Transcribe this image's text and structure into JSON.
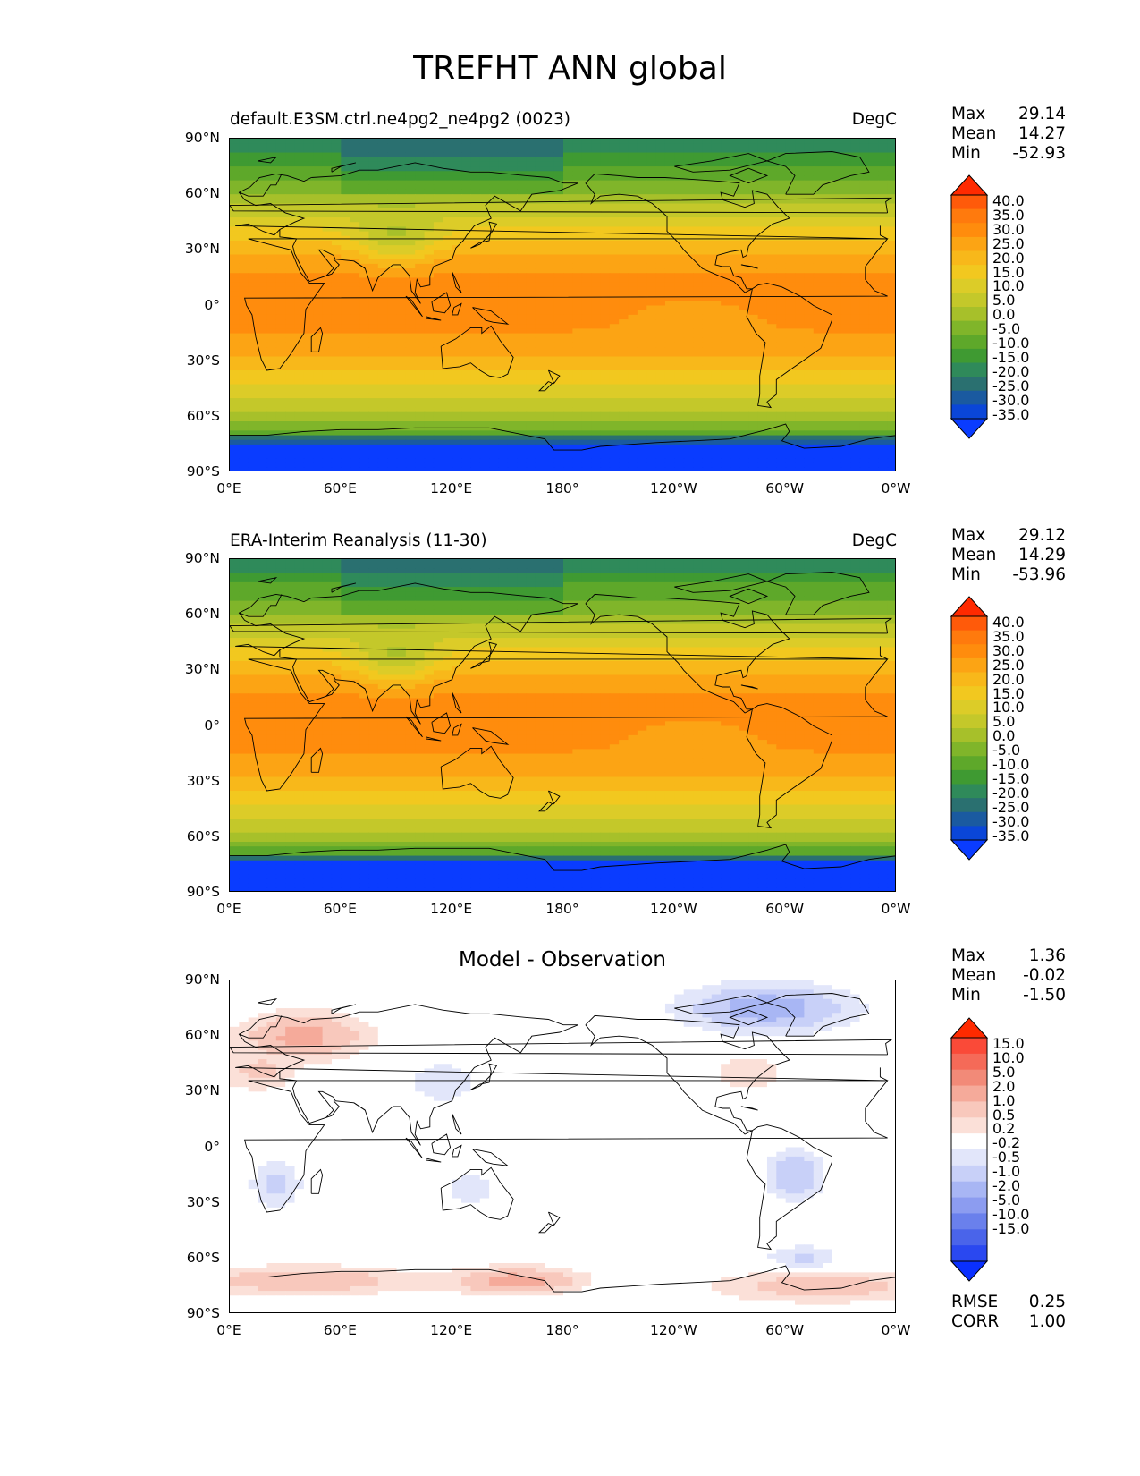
{
  "figure": {
    "title": "TREFHT ANN global"
  },
  "axes": {
    "yticks": [
      "90°N",
      "60°N",
      "30°N",
      "0°",
      "30°S",
      "60°S",
      "90°S"
    ],
    "xticks": [
      "0°E",
      "60°E",
      "120°E",
      "180°",
      "120°W",
      "60°W",
      "0°W"
    ]
  },
  "panels": [
    {
      "title_left": "default.E3SM.ctrl.ne4pg2_ne4pg2 (0023)",
      "title_right": "DegC",
      "stats": {
        "max_label": "Max",
        "max": "29.14",
        "mean_label": "Mean",
        "mean": "14.27",
        "min_label": "Min",
        "min": "-52.93"
      }
    },
    {
      "title_left": "ERA-Interim Reanalysis (11-30)",
      "title_right": "DegC",
      "stats": {
        "max_label": "Max",
        "max": "29.12",
        "mean_label": "Mean",
        "mean": "14.29",
        "min_label": "Min",
        "min": "-53.96"
      }
    },
    {
      "title_center": "Model - Observation",
      "stats": {
        "max_label": "Max",
        "max": "1.36",
        "mean_label": "Mean",
        "mean": "-0.02",
        "min_label": "Min",
        "min": "-1.50"
      },
      "metrics": {
        "rmse_label": "RMSE",
        "rmse": "0.25",
        "corr_label": "CORR",
        "corr": "1.00"
      }
    }
  ],
  "colorbars": {
    "temperature": {
      "labels": [
        "40.0",
        "35.0",
        "30.0",
        "25.0",
        "20.0",
        "15.0",
        "10.0",
        "5.0",
        "0.0",
        "-5.0",
        "-10.0",
        "-15.0",
        "-20.0",
        "-25.0",
        "-30.0",
        "-35.0"
      ],
      "colors": [
        "#ff2a00",
        "#ff5a0a",
        "#ff7a0d",
        "#ff8c0d",
        "#fca414",
        "#f8b81a",
        "#f2c81f",
        "#dccc28",
        "#c4c82a",
        "#a7c02a",
        "#80b52a",
        "#5ea82a",
        "#3f9a32",
        "#2f8a5a",
        "#2a7070",
        "#1a5aa0",
        "#0a46d8",
        "#0a3cff"
      ]
    },
    "difference": {
      "labels": [
        "15.0",
        "10.0",
        "5.0",
        "2.0",
        "1.0",
        "0.5",
        "0.2",
        "-0.2",
        "-0.5",
        "-1.0",
        "-2.0",
        "-5.0",
        "-10.0",
        "-15.0"
      ],
      "colors": [
        "#ff2a00",
        "#fa4a38",
        "#f56a58",
        "#f28a78",
        "#f5aa9a",
        "#f8c8bc",
        "#fbe0d8",
        "#ffffff",
        "#e2e6fa",
        "#c8d0f8",
        "#a8b6f4",
        "#8c9cf0",
        "#6a80ec",
        "#4a64ea",
        "#2a48f0",
        "#0a30ff"
      ]
    }
  },
  "chart_data": [
    {
      "type": "heatmap",
      "title": "default.E3SM.ctrl.ne4pg2_ne4pg2 (0023)",
      "units": "DegC",
      "x": [
        "0°E",
        "60°E",
        "120°E",
        "180°",
        "120°W",
        "60°W",
        "0°W"
      ],
      "y": [
        "90°N",
        "60°N",
        "30°N",
        "0°",
        "30°S",
        "60°S",
        "90°S"
      ],
      "zonal_mean_by_latitude": {
        "lat": [
          85,
          75,
          65,
          55,
          45,
          35,
          25,
          15,
          5,
          -5,
          -15,
          -25,
          -35,
          -45,
          -55,
          -62,
          -68,
          -75,
          -85
        ],
        "value": [
          -22,
          -15,
          -8,
          0,
          8,
          15,
          22,
          26,
          27,
          27,
          25,
          21,
          15,
          8,
          2,
          -3,
          -12,
          -30,
          -45
        ]
      },
      "levels": [
        -35,
        -30,
        -25,
        -20,
        -15,
        -10,
        -5,
        0,
        5,
        10,
        15,
        20,
        25,
        30,
        35,
        40
      ],
      "max": 29.14,
      "mean": 14.27,
      "min": -52.93
    },
    {
      "type": "heatmap",
      "title": "ERA-Interim Reanalysis (11-30)",
      "units": "DegC",
      "x": [
        "0°E",
        "60°E",
        "120°E",
        "180°",
        "120°W",
        "60°W",
        "0°W"
      ],
      "y": [
        "90°N",
        "60°N",
        "30°N",
        "0°",
        "30°S",
        "60°S",
        "90°S"
      ],
      "zonal_mean_by_latitude": {
        "lat": [
          85,
          75,
          65,
          55,
          45,
          35,
          25,
          15,
          5,
          -5,
          -15,
          -25,
          -35,
          -45,
          -55,
          -62,
          -68,
          -75,
          -85
        ],
        "value": [
          -21,
          -14,
          -8,
          0,
          8,
          15,
          22,
          26,
          27,
          27,
          25,
          21,
          15,
          8,
          2,
          -4,
          -13,
          -31,
          -46
        ]
      },
      "levels": [
        -35,
        -30,
        -25,
        -20,
        -15,
        -10,
        -5,
        0,
        5,
        10,
        15,
        20,
        25,
        30,
        35,
        40
      ],
      "max": 29.12,
      "mean": 14.29,
      "min": -53.96
    },
    {
      "type": "heatmap",
      "title": "Model - Observation",
      "x": [
        "0°E",
        "60°E",
        "120°E",
        "180°",
        "120°W",
        "60°W",
        "0°W"
      ],
      "y": [
        "90°N",
        "60°N",
        "30°N",
        "0°",
        "30°S",
        "60°S",
        "90°S"
      ],
      "levels": [
        -15,
        -10,
        -5,
        -2,
        -1,
        -0.5,
        -0.2,
        0.2,
        0.5,
        1,
        2,
        5,
        10,
        15
      ],
      "max": 1.36,
      "mean": -0.02,
      "min": -1.5,
      "rmse": 0.25,
      "corr": 1.0
    }
  ]
}
